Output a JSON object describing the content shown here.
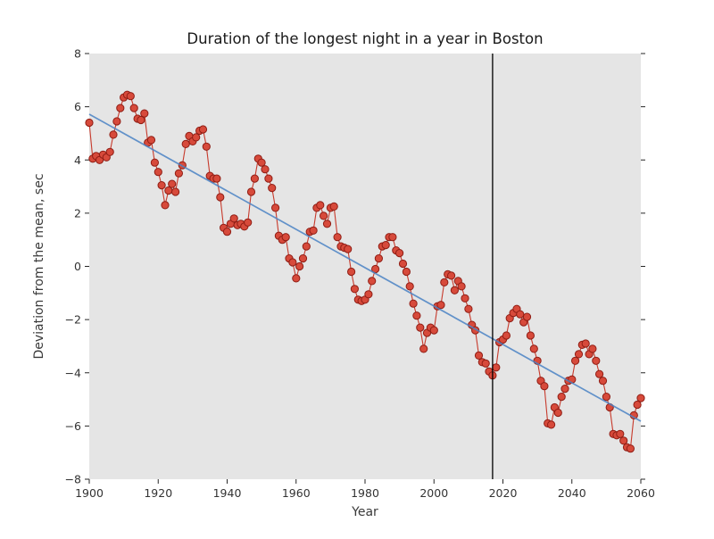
{
  "chart_data": {
    "type": "line",
    "title": "Duration of the longest night in a year in Boston",
    "xlabel": "Year",
    "ylabel": "Deviation from the mean, sec",
    "xlim": [
      1900,
      2060
    ],
    "ylim": [
      -8,
      8
    ],
    "grid": false,
    "legend": "none",
    "x_ticks": [
      1900,
      1920,
      1940,
      1960,
      1980,
      2000,
      2020,
      2040,
      2060
    ],
    "x_tick_labels": [
      "1900",
      "1920",
      "1940",
      "1960",
      "1980",
      "2000",
      "2020",
      "2040",
      "2060"
    ],
    "y_ticks": [
      -8,
      -6,
      -4,
      -2,
      0,
      2,
      4,
      6,
      8
    ],
    "y_tick_labels": [
      "−8",
      "−6",
      "−4",
      "−2",
      "0",
      "2",
      "4",
      "6",
      "8"
    ],
    "colors": {
      "plot_background": "#e5e5e5",
      "marker_fill": "#d74a3b",
      "marker_edge": "#8f1d14",
      "series_line": "#c73a2c",
      "trend_line": "#4a82c4",
      "vline": "#000000",
      "tick": "#262626"
    },
    "series": [
      {
        "name": "yearly-deviation",
        "type": "scatter-line",
        "x_start": 1900,
        "x_step": 1,
        "values": [
          5.4,
          4.05,
          4.15,
          4.0,
          4.2,
          4.1,
          4.3,
          4.95,
          5.45,
          5.95,
          6.35,
          6.45,
          6.4,
          5.95,
          5.55,
          5.5,
          5.75,
          4.65,
          4.75,
          3.9,
          3.55,
          3.05,
          2.3,
          2.85,
          3.1,
          2.8,
          3.5,
          3.8,
          4.6,
          4.9,
          4.7,
          4.85,
          5.1,
          5.15,
          4.5,
          3.4,
          3.3,
          3.3,
          2.6,
          1.45,
          1.3,
          1.6,
          1.8,
          1.55,
          1.6,
          1.5,
          1.65,
          2.8,
          3.3,
          4.05,
          3.9,
          3.65,
          3.3,
          2.95,
          2.2,
          1.15,
          1.0,
          1.1,
          0.3,
          0.15,
          -0.45,
          0.0,
          0.3,
          0.75,
          1.3,
          1.35,
          2.2,
          2.3,
          1.9,
          1.6,
          2.2,
          2.25,
          1.1,
          0.75,
          0.7,
          0.65,
          -0.2,
          -0.85,
          -1.25,
          -1.3,
          -1.25,
          -1.05,
          -0.55,
          -0.1,
          0.3,
          0.75,
          0.8,
          1.1,
          1.1,
          0.6,
          0.5,
          0.1,
          -0.2,
          -0.75,
          -1.4,
          -1.85,
          -2.3,
          -3.1,
          -2.5,
          -2.3,
          -2.4,
          -1.5,
          -1.45,
          -0.6,
          -0.3,
          -0.35,
          -0.9,
          -0.55,
          -0.75,
          -1.2,
          -1.6,
          -2.2,
          -2.4,
          -3.35,
          -3.6,
          -3.65,
          -3.95,
          -4.1,
          -3.8,
          -2.85,
          -2.75,
          -2.6,
          -1.95,
          -1.75,
          -1.6,
          -1.8,
          -2.1,
          -1.9,
          -2.6,
          -3.1,
          -3.55,
          -4.3,
          -4.5,
          -5.9,
          -5.95,
          -5.3,
          -5.5,
          -4.9,
          -4.6,
          -4.3,
          -4.25,
          -3.55,
          -3.3,
          -2.95,
          -2.9,
          -3.3,
          -3.1,
          -3.55,
          -4.05,
          -4.3,
          -4.9,
          -5.3,
          -6.3,
          -6.35,
          -6.3,
          -6.55,
          -6.8,
          -6.85,
          -5.6,
          -5.2,
          -4.95
        ]
      },
      {
        "name": "linear-trend",
        "type": "line",
        "points": [
          [
            1900,
            5.72
          ],
          [
            2060,
            -5.82
          ]
        ]
      },
      {
        "name": "current-year-marker",
        "type": "vline",
        "x": 2017
      }
    ]
  }
}
